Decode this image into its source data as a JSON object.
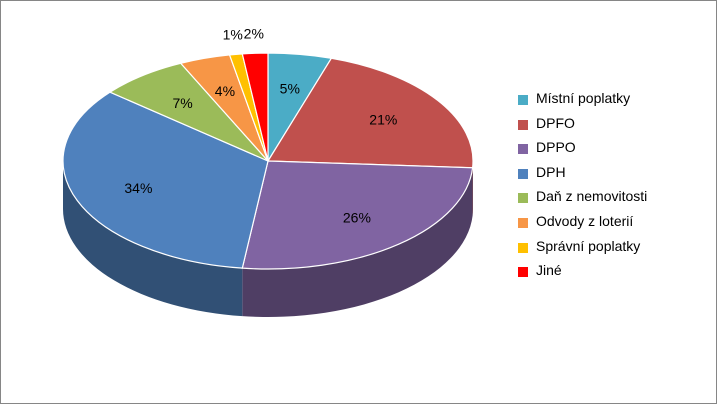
{
  "chart_data": {
    "type": "pie",
    "title": "",
    "categories": [
      "Místní poplatky",
      "DPFO",
      "DPPO",
      "DPH",
      "Daň z nemovitosti",
      "Odvody z loterií",
      "Správní poplatky",
      "Jiné"
    ],
    "values": [
      5,
      21,
      26,
      34,
      7,
      4,
      1,
      2
    ],
    "labels": [
      "5%",
      "21%",
      "26%",
      "34%",
      "7%",
      "4%",
      "1%",
      "2%"
    ],
    "colors": [
      "#4BACC6",
      "#C0504D",
      "#8064A2",
      "#4F81BD",
      "#9BBB59",
      "#F79646",
      "#FFC000",
      "#FF0000"
    ],
    "legend_position": "right",
    "style": "3d"
  }
}
